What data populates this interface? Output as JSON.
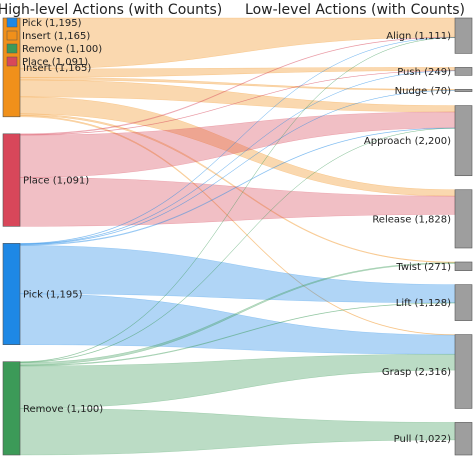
{
  "titles": {
    "left": "High-level Actions (with Counts)",
    "right": "Low-level Actions (with Counts)"
  },
  "legend": [
    {
      "label": "Pick (1,195)",
      "color": "#1e88e5"
    },
    {
      "label": "Insert (1,165)",
      "color": "#f0901a"
    },
    {
      "label": "Remove (1,100)",
      "color": "#3c9a58"
    },
    {
      "label": "Place (1,091)",
      "color": "#d8475a"
    }
  ],
  "chart_data": {
    "type": "sankey",
    "sources": [
      {
        "name": "Insert",
        "label": "Insert (1,165)",
        "value": 1165,
        "color": "#f0901a"
      },
      {
        "name": "Place",
        "label": "Place (1,091)",
        "value": 1091,
        "color": "#d8475a"
      },
      {
        "name": "Pick",
        "label": "Pick (1,195)",
        "value": 1195,
        "color": "#1e88e5"
      },
      {
        "name": "Remove",
        "label": "Remove (1,100)",
        "value": 1100,
        "color": "#3c9a58"
      }
    ],
    "targets": [
      {
        "name": "Align",
        "label": "Align (1,111)",
        "value": 1111
      },
      {
        "name": "Push",
        "label": "Push (249)",
        "value": 249
      },
      {
        "name": "Nudge",
        "label": "Nudge (70)",
        "value": 70
      },
      {
        "name": "Approach",
        "label": "Approach (2,200)",
        "value": 2200
      },
      {
        "name": "Release",
        "label": "Release (1,828)",
        "value": 1828
      },
      {
        "name": "Twist",
        "label": "Twist (271)",
        "value": 271
      },
      {
        "name": "Lift",
        "label": "Lift (1,128)",
        "value": 1128
      },
      {
        "name": "Grasp",
        "label": "Grasp (2,316)",
        "value": 2316
      },
      {
        "name": "Pull",
        "label": "Pull (1,022)",
        "value": 1022
      }
    ],
    "links": [
      {
        "source": "Insert",
        "target": "Align",
        "value": 600
      },
      {
        "source": "Insert",
        "target": "Push",
        "value": 100
      },
      {
        "source": "Insert",
        "target": "Nudge",
        "value": 30
      },
      {
        "source": "Insert",
        "target": "Approach",
        "value": 200
      },
      {
        "source": "Insert",
        "target": "Release",
        "value": 200
      },
      {
        "source": "Insert",
        "target": "Twist",
        "value": 20
      },
      {
        "source": "Insert",
        "target": "Grasp",
        "value": 15
      },
      {
        "source": "Place",
        "target": "Align",
        "value": 10
      },
      {
        "source": "Place",
        "target": "Push",
        "value": 5
      },
      {
        "source": "Place",
        "target": "Approach",
        "value": 500
      },
      {
        "source": "Place",
        "target": "Release",
        "value": 576
      },
      {
        "source": "Pick",
        "target": "Align",
        "value": 5
      },
      {
        "source": "Pick",
        "target": "Push",
        "value": 5
      },
      {
        "source": "Pick",
        "target": "Nudge",
        "value": 5
      },
      {
        "source": "Pick",
        "target": "Approach",
        "value": 10
      },
      {
        "source": "Pick",
        "target": "Lift",
        "value": 570
      },
      {
        "source": "Pick",
        "target": "Grasp",
        "value": 600
      },
      {
        "source": "Remove",
        "target": "Align",
        "value": 5
      },
      {
        "source": "Remove",
        "target": "Approach",
        "value": 5
      },
      {
        "source": "Remove",
        "target": "Twist",
        "value": 30
      },
      {
        "source": "Remove",
        "target": "Lift",
        "value": 10
      },
      {
        "source": "Remove",
        "target": "Grasp",
        "value": 500
      },
      {
        "source": "Remove",
        "target": "Pull",
        "value": 550
      }
    ]
  }
}
